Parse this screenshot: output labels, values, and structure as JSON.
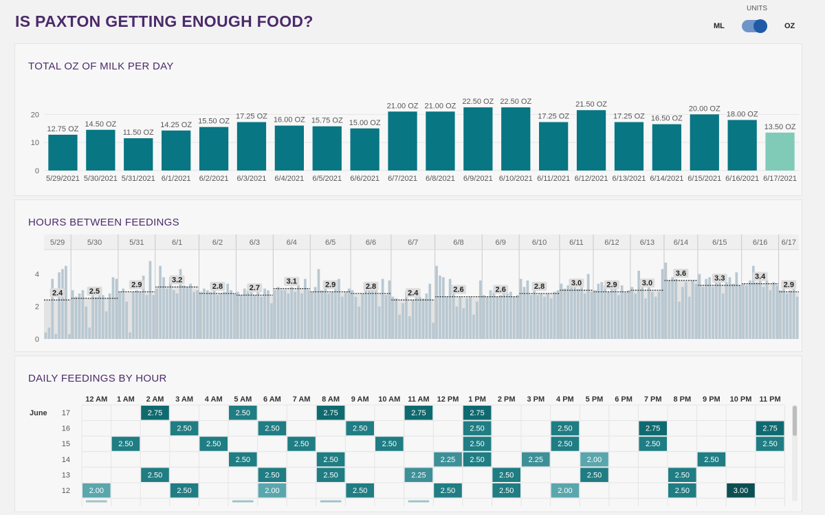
{
  "header": {
    "title": "IS PAXTON GETTING ENOUGH FOOD?",
    "units_label": "UNITS",
    "unit_left": "ML",
    "unit_right": "OZ",
    "selected_unit": "OZ"
  },
  "colors": {
    "bar": "#087683",
    "bar_highlight": "#7fcbb8",
    "hours_bar": "#b8c8d2",
    "accent_title": "#4b2a6b"
  },
  "chart_data": [
    {
      "type": "bar",
      "title": "TOTAL OZ OF MILK PER DAY",
      "categories": [
        "5/29/2021",
        "5/30/2021",
        "5/31/2021",
        "6/1/2021",
        "6/2/2021",
        "6/3/2021",
        "6/4/2021",
        "6/5/2021",
        "6/6/2021",
        "6/7/2021",
        "6/8/2021",
        "6/9/2021",
        "6/10/2021",
        "6/11/2021",
        "6/12/2021",
        "6/13/2021",
        "6/14/2021",
        "6/15/2021",
        "6/16/2021",
        "6/17/2021"
      ],
      "values": [
        12.75,
        14.5,
        11.5,
        14.25,
        15.5,
        17.25,
        16.0,
        15.75,
        15.0,
        21.0,
        21.0,
        22.5,
        22.5,
        17.25,
        21.5,
        17.25,
        16.5,
        20.0,
        18.0,
        13.5
      ],
      "labels": [
        "12.75 OZ",
        "14.50 OZ",
        "11.50 OZ",
        "14.25 OZ",
        "15.50 OZ",
        "17.25 OZ",
        "16.00 OZ",
        "15.75 OZ",
        "15.00 OZ",
        "21.00 OZ",
        "21.00 OZ",
        "22.50 OZ",
        "22.50 OZ",
        "17.25 OZ",
        "21.50 OZ",
        "17.25 OZ",
        "16.50 OZ",
        "20.00 OZ",
        "18.00 OZ",
        "13.50 OZ"
      ],
      "yticks": [
        0,
        10,
        20
      ],
      "ylim": [
        0,
        24
      ],
      "highlight_index": 19
    },
    {
      "type": "bar",
      "title": "HOURS BETWEEN FEEDINGS",
      "days": [
        "5/29",
        "5/30",
        "5/31",
        "6/1",
        "6/2",
        "6/3",
        "6/4",
        "6/5",
        "6/6",
        "6/7",
        "6/8",
        "6/9",
        "6/10",
        "6/11",
        "6/12",
        "6/13",
        "6/14",
        "6/15",
        "6/16",
        "6/17"
      ],
      "averages": [
        2.4,
        2.5,
        2.9,
        3.2,
        2.8,
        2.7,
        3.1,
        2.9,
        2.8,
        2.4,
        2.6,
        2.6,
        2.8,
        3.0,
        2.9,
        3.0,
        3.6,
        3.3,
        3.4,
        2.9
      ],
      "average_labels": [
        "2.4",
        "2.5",
        "2.9",
        "3.2",
        "2.8",
        "2.7",
        "3.1",
        "2.9",
        "2.8",
        "2.4",
        "2.6",
        "2.6",
        "2.8",
        "3.0",
        "2.9",
        "3.0",
        "3.6",
        "3.3",
        "3.4",
        "2.9"
      ],
      "feedings": [
        [
          0.4,
          0.7,
          3.7,
          0.3,
          4.1,
          4.3,
          4.5,
          0.3
        ],
        [
          3.0,
          2.6,
          2.8,
          3.0,
          2.0,
          0.7,
          3.1,
          2.6,
          3.1,
          2.7,
          1.7,
          2.8,
          3.8,
          3.7
        ],
        [
          2.9,
          3.1,
          2.3,
          0.4,
          2.9,
          3.0,
          2.9,
          3.9,
          2.7,
          4.8,
          2.7
        ],
        [
          3.1,
          4.5,
          3.8,
          3.1,
          3.8,
          3.0,
          2.8,
          4.3,
          3.3,
          3.2,
          3.4,
          2.9,
          3.0
        ],
        [
          2.9,
          3.1,
          3.0,
          2.9,
          3.1,
          2.7,
          2.8,
          2.9,
          3.4,
          3.0,
          2.8
        ],
        [
          2.9,
          2.7,
          3.1,
          3.0,
          2.9,
          2.7,
          3.1,
          2.6,
          3.1,
          3.0,
          2.2
        ],
        [
          3.0,
          3.2,
          3.0,
          3.0,
          2.8,
          3.2,
          2.9,
          3.3,
          2.8,
          3.7,
          3.0
        ],
        [
          2.9,
          3.2,
          4.3,
          3.0,
          3.3,
          2.8,
          2.9,
          3.3,
          3.7,
          2.6,
          2.9,
          3.1
        ],
        [
          3.0,
          2.6,
          2.0,
          2.8,
          3.4,
          3.3,
          3.1,
          3.0,
          2.0,
          3.7,
          2.7,
          3.6
        ],
        [
          2.6,
          2.5,
          1.5,
          2.2,
          2.9,
          1.4,
          2.4,
          2.6,
          2.6,
          2.5,
          2.8,
          3.4,
          1.0
        ],
        [
          4.5,
          3.9,
          3.8,
          2.6,
          3.7,
          2.8,
          2.0,
          2.6,
          1.9,
          2.5,
          2.6,
          1.5,
          2.3,
          3.6
        ],
        [
          2.7,
          2.6,
          3.0,
          2.9,
          2.6,
          2.7,
          2.8,
          2.8,
          2.9,
          2.6,
          2.7
        ],
        [
          3.7,
          3.2,
          3.6,
          2.7,
          3.2,
          2.7,
          2.8,
          2.6,
          2.8,
          2.5,
          2.9,
          3.0
        ],
        [
          3.4,
          3.1,
          3.3,
          3.6,
          3.3,
          3.1,
          3.5,
          2.8,
          4.0,
          2.9
        ],
        [
          3.0,
          3.4,
          3.5,
          3.3,
          2.9,
          3.1,
          3.5,
          2.7,
          3.3,
          2.9,
          3.0
        ],
        [
          3.2,
          2.8,
          4.2,
          3.3,
          2.5,
          3.4,
          2.9,
          2.6,
          2.9,
          4.3
        ],
        [
          4.7,
          3.6,
          3.8,
          3.7,
          2.3,
          3.2,
          3.5,
          2.6,
          3.6,
          3.4
        ],
        [
          4.0,
          3.2,
          3.7,
          3.8,
          3.2,
          4.0,
          3.6,
          2.8,
          3.5,
          3.8,
          3.4,
          4.1,
          3.3
        ],
        [
          3.4,
          3.3,
          3.6,
          4.5,
          3.5,
          3.8,
          3.2,
          3.6,
          3.0,
          3.5,
          3.3
        ],
        [
          3.0,
          3.1,
          2.8,
          3.0,
          3.3,
          2.6
        ]
      ],
      "yticks": [
        0,
        2,
        4
      ],
      "ylim": [
        0,
        5.5
      ]
    },
    {
      "type": "heatmap",
      "title": "DAILY FEEDINGS BY HOUR",
      "hours": [
        "12 AM",
        "1 AM",
        "2 AM",
        "3 AM",
        "4 AM",
        "5 AM",
        "6 AM",
        "7 AM",
        "8 AM",
        "9 AM",
        "10 AM",
        "11 AM",
        "12 PM",
        "1 PM",
        "2 PM",
        "3 PM",
        "4 PM",
        "5 PM",
        "6 PM",
        "7 PM",
        "8 PM",
        "9 PM",
        "10 PM",
        "11 PM"
      ],
      "month_label": "June",
      "rows": [
        {
          "day": "17",
          "cells": [
            [
              2,
              "2.75"
            ],
            [
              5,
              "2.50"
            ],
            [
              8,
              "2.75"
            ],
            [
              11,
              "2.75"
            ],
            [
              13,
              "2.75"
            ]
          ]
        },
        {
          "day": "16",
          "cells": [
            [
              3,
              "2.50"
            ],
            [
              6,
              "2.50"
            ],
            [
              9,
              "2.50"
            ],
            [
              13,
              "2.50"
            ],
            [
              16,
              "2.50"
            ],
            [
              19,
              "2.75"
            ],
            [
              23,
              "2.75"
            ]
          ]
        },
        {
          "day": "15",
          "cells": [
            [
              1,
              "2.50"
            ],
            [
              4,
              "2.50"
            ],
            [
              7,
              "2.50"
            ],
            [
              10,
              "2.50"
            ],
            [
              13,
              "2.50"
            ],
            [
              16,
              "2.50"
            ],
            [
              19,
              "2.50"
            ],
            [
              23,
              "2.50"
            ]
          ]
        },
        {
          "day": "14",
          "cells": [
            [
              5,
              "2.50"
            ],
            [
              8,
              "2.50"
            ],
            [
              12,
              "2.25"
            ],
            [
              13,
              "2.50"
            ],
            [
              15,
              "2.25"
            ],
            [
              17,
              "2.00"
            ],
            [
              21,
              "2.50"
            ]
          ]
        },
        {
          "day": "13",
          "cells": [
            [
              2,
              "2.50"
            ],
            [
              6,
              "2.50"
            ],
            [
              8,
              "2.50"
            ],
            [
              11,
              "2.25"
            ],
            [
              14,
              "2.50"
            ],
            [
              17,
              "2.50"
            ],
            [
              20,
              "2.50"
            ]
          ]
        },
        {
          "day": "12",
          "cells": [
            [
              0,
              "2.00"
            ],
            [
              3,
              "2.50"
            ],
            [
              6,
              "2.00"
            ],
            [
              9,
              "2.50"
            ],
            [
              12,
              "2.50"
            ],
            [
              14,
              "2.50"
            ],
            [
              16,
              "2.00"
            ],
            [
              20,
              "2.50"
            ],
            [
              22,
              "3.00"
            ]
          ]
        }
      ]
    }
  ]
}
